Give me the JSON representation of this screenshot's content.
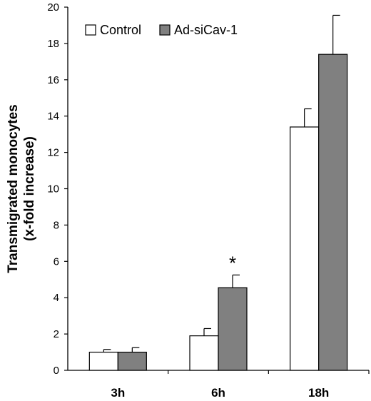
{
  "chart_data": {
    "type": "bar",
    "categories": [
      "3h",
      "6h",
      "18h"
    ],
    "ylabel": "Transmigrated monocytes",
    "ylabel_sub": "(x-fold increase)",
    "ylim": [
      0,
      20
    ],
    "yticks": [
      0,
      2,
      4,
      6,
      8,
      10,
      12,
      14,
      16,
      18,
      20
    ],
    "grid": false,
    "legend_position": "top-left",
    "series": [
      {
        "name": "Control",
        "color": "#ffffff",
        "values": [
          1.0,
          1.9,
          13.4
        ],
        "errors": [
          0.15,
          0.4,
          1.0
        ]
      },
      {
        "name": "Ad-siCav-1",
        "color": "#808080",
        "values": [
          1.0,
          4.55,
          17.4
        ],
        "errors": [
          0.25,
          0.7,
          2.15
        ]
      }
    ],
    "annotations": [
      {
        "text": "*",
        "category": "6h",
        "series": "Ad-siCav-1"
      }
    ]
  }
}
